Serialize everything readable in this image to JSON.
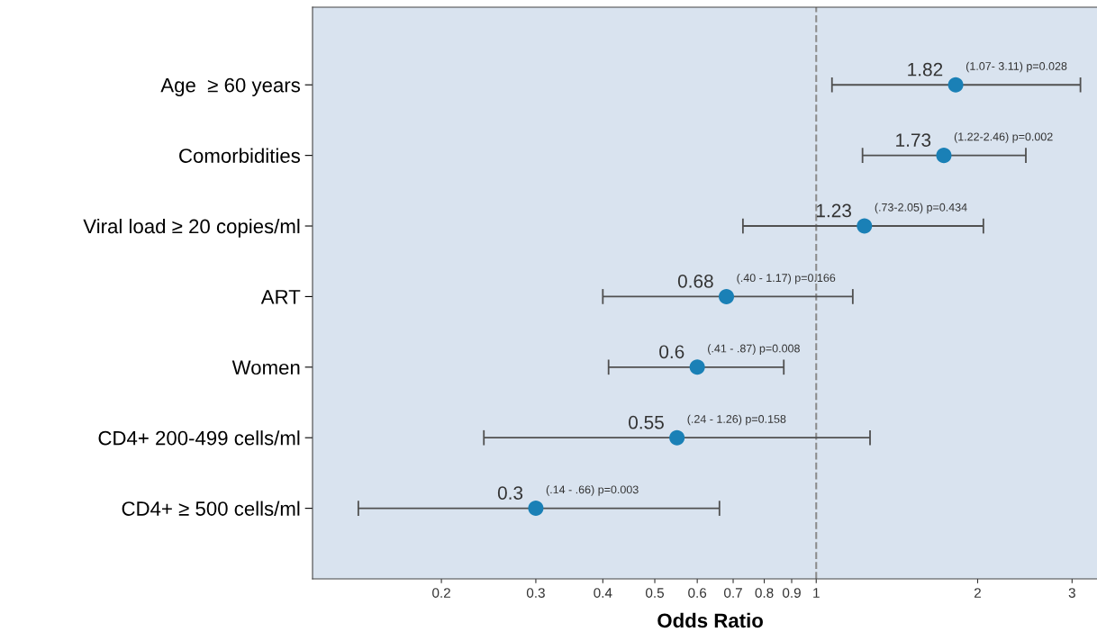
{
  "chart_data": {
    "type": "scatter",
    "orientation": "horizontal",
    "xlabel": "Odds Ratio",
    "categories": [
      "Age  ≥ 60 years",
      "Comorbidities",
      "Viral load ≥ 20 copies/ml",
      "ART",
      "Women",
      "CD4+ 200-499 cells/ml",
      "CD4+ ≥ 500 cells/ml"
    ],
    "series": [
      {
        "color": "#1a80b6",
        "values": [
          1.82,
          1.73,
          1.23,
          0.68,
          0.6,
          0.55,
          0.3
        ],
        "errors": [
          [
            1.07,
            3.11
          ],
          [
            1.22,
            2.46
          ],
          [
            0.73,
            2.05
          ],
          [
            0.4,
            1.17
          ],
          [
            0.41,
            0.87
          ],
          [
            0.24,
            1.26
          ],
          [
            0.14,
            0.66
          ]
        ]
      }
    ],
    "data_labels": true,
    "annotations": [
      {
        "text": "(1.07- 3.11) p=0.028",
        "x": 1.82,
        "y": "Age  ≥ 60 years"
      },
      {
        "text": "(1.22-2.46) p=0.002",
        "x": 1.73,
        "y": "Comorbidities"
      },
      {
        "text": "(.73-2.05) p=0.434",
        "x": 1.23,
        "y": "Viral load ≥ 20 copies/ml"
      },
      {
        "text": "(.40 - 1.17) p=0.166",
        "x": 0.68,
        "y": "ART"
      },
      {
        "text": "(.41 - .87) p=0.008",
        "x": 0.6,
        "y": "Women"
      },
      {
        "text": "(.24 - 1.26) p=0.158",
        "x": 0.55,
        "y": "CD4+ 200-499 cells/ml"
      },
      {
        "text": "(.14 - .66) p=0.003",
        "x": 0.3,
        "y": "CD4+ ≥ 500 cells/ml"
      }
    ],
    "log": "x",
    "xlim": [
      0.115,
      3.5
    ],
    "xticks": [
      0.2,
      0.3,
      0.4,
      0.5,
      0.6,
      0.7,
      0.8,
      0.9,
      1,
      2,
      3
    ],
    "ref_lines": [
      {
        "axis": "x",
        "value": 1,
        "color": "#8c8c8c",
        "line_style": "dashed"
      }
    ],
    "marker": "circle",
    "grid": false
  }
}
